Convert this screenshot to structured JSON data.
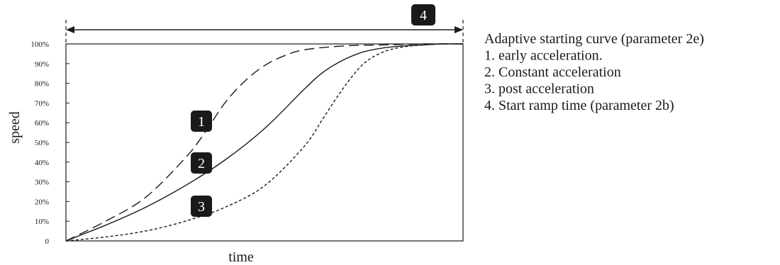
{
  "chart_data": {
    "type": "line",
    "xlabel": "time",
    "ylabel": "speed",
    "ylim": [
      0,
      100
    ],
    "y_ticks": [
      "0",
      "10%",
      "20%",
      "30%",
      "40%",
      "50%",
      "60%",
      "70%",
      "80%",
      "90%",
      "100%"
    ],
    "grid": false,
    "x_range": [
      0,
      1
    ],
    "series": [
      {
        "label": "1",
        "dash": "dashed",
        "x": [
          0,
          0.1,
          0.2,
          0.3,
          0.35,
          0.4,
          0.45,
          0.5,
          0.55,
          0.6,
          0.7,
          0.8,
          0.9,
          1.0
        ],
        "y": [
          0,
          10,
          22,
          42,
          55,
          70,
          81,
          89,
          94,
          97,
          99,
          99.5,
          100,
          100
        ]
      },
      {
        "label": "2",
        "dash": "solid",
        "x": [
          0,
          0.1,
          0.2,
          0.3,
          0.4,
          0.5,
          0.6,
          0.65,
          0.7,
          0.75,
          0.8,
          0.85,
          0.9,
          0.95,
          1.0
        ],
        "y": [
          0,
          8,
          17,
          28,
          41,
          57,
          77,
          86,
          92,
          96,
          98,
          99,
          99.5,
          100,
          100
        ]
      },
      {
        "label": "3",
        "dash": "dotted",
        "x": [
          0,
          0.1,
          0.2,
          0.3,
          0.4,
          0.5,
          0.6,
          0.65,
          0.7,
          0.75,
          0.8,
          0.85,
          0.9,
          0.95,
          1.0
        ],
        "y": [
          0,
          2,
          5,
          10,
          17,
          28,
          48,
          63,
          78,
          90,
          96,
          98.5,
          99.5,
          100,
          100
        ]
      }
    ],
    "annotations": {
      "ramp_label": "4",
      "ramp_span": [
        0,
        1
      ]
    }
  },
  "legend": {
    "lines": [
      "Adaptive starting curve (parameter 2e)",
      "1. early acceleration.",
      "2. Constant acceleration",
      "3. post acceleration",
      "4. Start ramp time (parameter 2b)"
    ]
  },
  "colors": {
    "ink": "#1a1a1a",
    "badge": "#1a1a1a",
    "badge_text": "#ffffff"
  }
}
